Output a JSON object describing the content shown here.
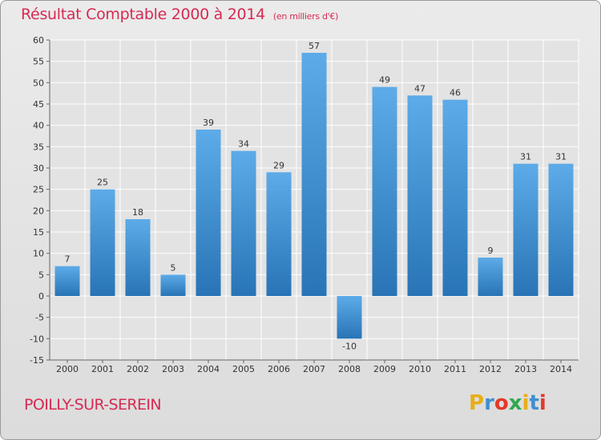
{
  "header": {
    "title": "Résultat Comptable 2000 à 2014",
    "unit": "(en milliers d'€)"
  },
  "footer": {
    "commune": "POILLY-SUR-SEREIN",
    "logo_letters": [
      "P",
      "r",
      "o",
      "x",
      "i",
      "t",
      "i"
    ],
    "logo_colors": [
      "#e8ae1a",
      "#3f8fd2",
      "#e23a2a",
      "#2fa84f",
      "#e8ae1a",
      "#3f8fd2",
      "#e23a2a"
    ]
  },
  "colors": {
    "title": "#d72a52",
    "bar_light": "#5aa9e6",
    "bar_dark": "#2a77b8",
    "grid": "#ffffff"
  },
  "chart_data": {
    "type": "bar",
    "title": "Résultat Comptable 2000 à 2014",
    "xlabel": "",
    "ylabel": "",
    "categories": [
      "2000",
      "2001",
      "2002",
      "2003",
      "2004",
      "2005",
      "2006",
      "2007",
      "2008",
      "2009",
      "2010",
      "2011",
      "2012",
      "2013",
      "2014"
    ],
    "values": [
      7,
      25,
      18,
      5,
      39,
      34,
      29,
      57,
      -10,
      49,
      47,
      46,
      9,
      31,
      31
    ],
    "ylim": [
      -15,
      60
    ],
    "yticks": [
      60,
      55,
      50,
      45,
      40,
      35,
      30,
      25,
      20,
      15,
      10,
      5,
      0,
      -5,
      -10,
      -15
    ],
    "grid": true
  }
}
